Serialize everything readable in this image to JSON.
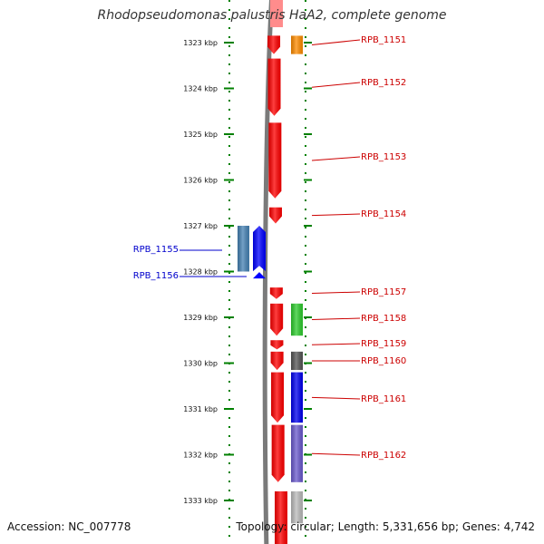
{
  "title": "Rhodopseudomonas palustris HaA2, complete genome",
  "footer": {
    "accession": "Accession: NC_007778",
    "summary": "Topology: circular; Length: 5,331,656 bp; Genes: 4,742"
  },
  "colors": {
    "ruler": "#008000",
    "backbone": "#7a7a7a",
    "forward_gene": "#ff0000",
    "reverse_label": "#0000cc",
    "forward_label": "#cc0000"
  },
  "ticks": [
    "1323 kbp",
    "1324 kbp",
    "1325 kbp",
    "1326 kbp",
    "1327 kbp",
    "1328 kbp",
    "1329 kbp",
    "1330 kbp",
    "1331 kbp",
    "1332 kbp",
    "1333 kbp"
  ],
  "forward_genes": [
    {
      "label": "RPB_1151",
      "start": 1322.85,
      "end": 1323.25,
      "color": "#ff0000"
    },
    {
      "label": "RPB_1152",
      "start": 1323.35,
      "end": 1324.6,
      "color": "#ff0000"
    },
    {
      "label": "RPB_1153",
      "start": 1324.75,
      "end": 1326.4,
      "color": "#ff0000"
    },
    {
      "label": "RPB_1154",
      "start": 1326.6,
      "end": 1326.95,
      "color": "#ff0000"
    },
    {
      "label": "RPB_1157",
      "start": 1328.35,
      "end": 1328.6,
      "color": "#ff0000"
    },
    {
      "label": "RPB_1158",
      "start": 1328.7,
      "end": 1329.4,
      "color": "#ff0000"
    },
    {
      "label": "RPB_1159",
      "start": 1329.5,
      "end": 1329.7,
      "color": "#ff0000"
    },
    {
      "label": "RPB_1160",
      "start": 1329.75,
      "end": 1330.15,
      "color": "#ff0000"
    },
    {
      "label": "RPB_1161",
      "start": 1330.2,
      "end": 1331.3,
      "color": "#ff0000"
    },
    {
      "label": "RPB_1162",
      "start": 1331.35,
      "end": 1332.6,
      "color": "#ff0000"
    }
  ],
  "forward_features": [
    {
      "start": 1322.85,
      "end": 1323.25,
      "color": "#ff8c00"
    },
    {
      "start": 1328.7,
      "end": 1329.4,
      "color": "#2ecc2e"
    },
    {
      "start": 1329.75,
      "end": 1330.15,
      "color": "#555555"
    },
    {
      "start": 1330.2,
      "end": 1331.3,
      "color": "#0000ee"
    },
    {
      "start": 1331.35,
      "end": 1332.6,
      "color": "#6a5acd"
    },
    {
      "start": 1332.8,
      "end": 1333.5,
      "color": "#bbbbbb"
    }
  ],
  "reverse_genes": [
    {
      "label": "RPB_1155",
      "start": 1327.0,
      "end": 1328.0,
      "color": "#4682b4"
    },
    {
      "label": "RPB_1156",
      "start": 1327.0,
      "end": 1328.15,
      "color": "#0000ff"
    }
  ]
}
